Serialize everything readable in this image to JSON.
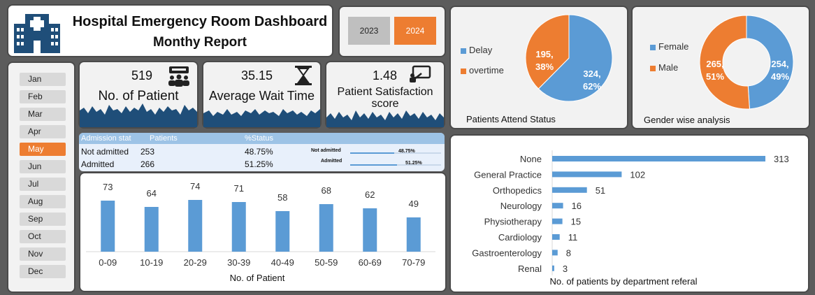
{
  "header": {
    "title": "Hospital Emergency Room Dashboard",
    "subtitle": "Monthy Report",
    "icon": "hospital-icon"
  },
  "years": [
    {
      "label": "2023",
      "selected": false
    },
    {
      "label": "2024",
      "selected": true
    }
  ],
  "months": [
    {
      "label": "Jan"
    },
    {
      "label": "Feb"
    },
    {
      "label": "Mar"
    },
    {
      "label": "Apr"
    },
    {
      "label": "May",
      "selected": true
    },
    {
      "label": "Jun"
    },
    {
      "label": "Jul"
    },
    {
      "label": "Aug"
    },
    {
      "label": "Sep"
    },
    {
      "label": "Oct"
    },
    {
      "label": "Nov"
    },
    {
      "label": "Dec"
    }
  ],
  "kpis": [
    {
      "value": "519",
      "label": "No. of Patient",
      "icon": "patients-icon"
    },
    {
      "value": "35.15",
      "label": "Average Wait Time",
      "icon": "hourglass-icon"
    },
    {
      "value": "1.48",
      "label": "Patient Satisfaction score",
      "icon": "satisfaction-icon"
    }
  ],
  "admission_table": {
    "headers": [
      "Admission stat",
      "Patients",
      "%Status"
    ],
    "rows": [
      {
        "status": "Not admitted",
        "patients": "253",
        "pct": "48.75%",
        "bar_label": "Not admitted",
        "bar_value": "48.75%",
        "bar_fraction": 0.4875
      },
      {
        "status": "Admitted",
        "patients": "266",
        "pct": "51.25%",
        "bar_label": "Admitted",
        "bar_value": "51.25%",
        "bar_fraction": 0.5125
      }
    ]
  },
  "colors": {
    "blue": "#5b9bd5",
    "orange": "#ed7d31",
    "navy": "#1f4e79"
  },
  "chart_data": [
    {
      "type": "bar",
      "categories": [
        "0-09",
        "10-19",
        "20-29",
        "30-39",
        "40-49",
        "50-59",
        "60-69",
        "70-79"
      ],
      "values": [
        73,
        64,
        74,
        71,
        58,
        68,
        62,
        49
      ],
      "xlabel": "No. of Patient",
      "ylim": [
        0,
        90
      ]
    },
    {
      "type": "pie",
      "caption": "Patients Attend Status",
      "slices": [
        {
          "name": "Delay",
          "value": 324,
          "label_value": "324,",
          "label_pct": "62%",
          "color": "#5b9bd5"
        },
        {
          "name": "overtime",
          "value": 195,
          "label_value": "195,",
          "label_pct": "38%",
          "color": "#ed7d31"
        }
      ]
    },
    {
      "type": "pie",
      "caption": "Gender wise analysis",
      "donut": true,
      "slices": [
        {
          "name": "Female",
          "value": 254,
          "label_value": "254,",
          "label_pct": "49%",
          "color": "#5b9bd5"
        },
        {
          "name": "Male",
          "value": 265,
          "label_value": "265,",
          "label_pct": "51%",
          "color": "#ed7d31"
        }
      ]
    },
    {
      "type": "bar",
      "orientation": "horizontal",
      "caption": "No. of patients by department referal",
      "categories": [
        "None",
        "General Practice",
        "Orthopedics",
        "Neurology",
        "Physiotherapy",
        "Cardiology",
        "Gastroenterology",
        "Renal"
      ],
      "values": [
        313,
        102,
        51,
        16,
        15,
        11,
        8,
        3
      ],
      "xlim": [
        0,
        313
      ]
    }
  ]
}
